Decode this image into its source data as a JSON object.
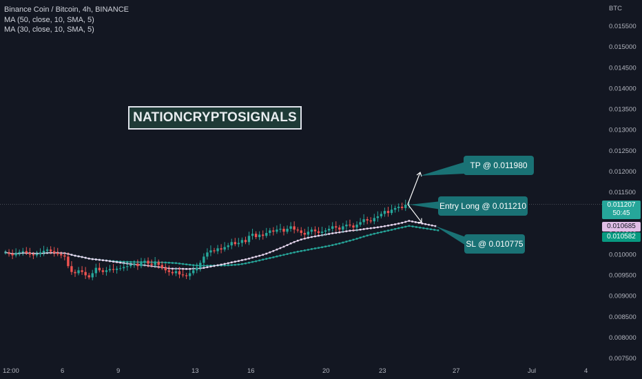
{
  "header": {
    "symbol_line": "Binance Coin / Bitcoin, 4h, BINANCE",
    "indicators": [
      "MA (50, close, 10, SMA, 5)",
      "MA (30, close, 10, SMA, 5)"
    ]
  },
  "watermark": "NATIONCRYPTOSIGNALS",
  "annotations": {
    "tp": "TP @ 0.011980",
    "entry": "Entry Long @ 0.011210",
    "sl": "SL @ 0.010775"
  },
  "price_tags": {
    "last_price": "0.011207",
    "countdown": "50:45",
    "ma_fast": "0.010685",
    "ma_slow": "0.010582"
  },
  "colors": {
    "background": "#131722",
    "up": "#26a69a",
    "down": "#ef5350",
    "ma_fast": "#e8d8f0",
    "ma_slow": "#26a69a",
    "callout": "#1a7275"
  },
  "chart_data": {
    "type": "candlestick",
    "y_axis_unit": "BTC",
    "ylim": [
      0.0075,
      0.016
    ],
    "y_ticks": [
      "0.015500",
      "0.015000",
      "0.014500",
      "0.014000",
      "0.013500",
      "0.013000",
      "0.012500",
      "0.012000",
      "0.011500",
      "0.011000",
      "0.010500",
      "0.010000",
      "0.009500",
      "0.009000",
      "0.008500",
      "0.008000",
      "0.007500"
    ],
    "x_ticks": [
      "12:00",
      "6",
      "9",
      "13",
      "16",
      "20",
      "23",
      "27",
      "Jul",
      "4"
    ],
    "close_series": [
      0.01005,
      0.01002,
      0.00998,
      0.01003,
      0.01006,
      0.01008,
      0.01004,
      0.01,
      0.00998,
      0.01001,
      0.01005,
      0.01009,
      0.01012,
      0.01008,
      0.01004,
      0.01001,
      0.00998,
      0.00995,
      0.00972,
      0.00958,
      0.00955,
      0.00962,
      0.00958,
      0.0095,
      0.00945,
      0.00955,
      0.00968,
      0.00962,
      0.00958,
      0.00962,
      0.00965,
      0.00963,
      0.00966,
      0.00967,
      0.0097,
      0.00972,
      0.00975,
      0.00978,
      0.00972,
      0.0098,
      0.00985,
      0.00978,
      0.00975,
      0.00982,
      0.00975,
      0.00968,
      0.00962,
      0.00958,
      0.00955,
      0.0096,
      0.00952,
      0.0095,
      0.00948,
      0.00955,
      0.00962,
      0.00968,
      0.0098,
      0.00995,
      0.01005,
      0.0101,
      0.01008,
      0.01015,
      0.01012,
      0.01018,
      0.01022,
      0.0103,
      0.01025,
      0.01028,
      0.01035,
      0.0103,
      0.01045,
      0.0105,
      0.01042,
      0.01048,
      0.01045,
      0.01052,
      0.01058,
      0.01055,
      0.0106,
      0.01062,
      0.01055,
      0.01062,
      0.01068,
      0.0106,
      0.01058,
      0.01052,
      0.01048,
      0.01055,
      0.0106,
      0.01056,
      0.01052,
      0.01055,
      0.01058,
      0.01062,
      0.01068,
      0.01065,
      0.0106,
      0.01068,
      0.01072,
      0.0107,
      0.01065,
      0.01072,
      0.01078,
      0.01085,
      0.01082,
      0.0108,
      0.01088,
      0.01092,
      0.01098,
      0.01105,
      0.011,
      0.01108,
      0.01112,
      0.01115,
      0.01112,
      0.0112,
      0.01121
    ]
  }
}
